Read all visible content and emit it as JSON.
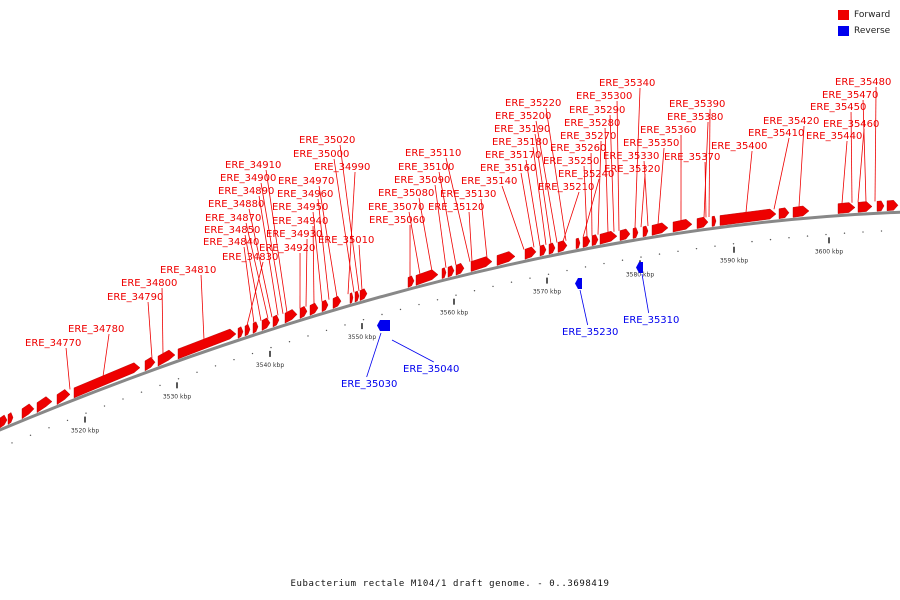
{
  "legend": {
    "items": [
      {
        "label": "Forward",
        "color": "#ee0000"
      },
      {
        "label": "Reverse",
        "color": "#0000ee"
      }
    ]
  },
  "caption": "Eubacterium rectale M104/1 draft genome. - 0..3698419",
  "colors": {
    "forward": "#ee0000",
    "reverse": "#0000ee",
    "backbone": "#888888"
  },
  "scale_ticks": [
    {
      "kbp": 3520,
      "label": "3520 kbp"
    },
    {
      "kbp": 3530,
      "label": "3530 kbp"
    },
    {
      "kbp": 3540,
      "label": "3540 kbp"
    },
    {
      "kbp": 3550,
      "label": "3550 kbp"
    },
    {
      "kbp": 3560,
      "label": "3560 kbp"
    },
    {
      "kbp": 3570,
      "label": "3570 kbp"
    },
    {
      "kbp": 3580,
      "label": "3580 kbp"
    },
    {
      "kbp": 3590,
      "label": "3590 kbp"
    },
    {
      "kbp": 3600,
      "label": "3600 kbp"
    }
  ],
  "forward_genes": [
    "ERE_34770",
    "ERE_34780",
    "ERE_34790",
    "ERE_34800",
    "ERE_34810",
    "ERE_34830",
    "ERE_34840",
    "ERE_34850",
    "ERE_34870",
    "ERE_34880",
    "ERE_34890",
    "ERE_34900",
    "ERE_34910",
    "ERE_34920",
    "ERE_34930",
    "ERE_34940",
    "ERE_34950",
    "ERE_34960",
    "ERE_34970",
    "ERE_34990",
    "ERE_35000",
    "ERE_35010",
    "ERE_35020",
    "ERE_35060",
    "ERE_35070",
    "ERE_35080",
    "ERE_35090",
    "ERE_35100",
    "ERE_35110",
    "ERE_35120",
    "ERE_35130",
    "ERE_35140",
    "ERE_35160",
    "ERE_35170",
    "ERE_35180",
    "ERE_35190",
    "ERE_35200",
    "ERE_35210",
    "ERE_35220",
    "ERE_35240",
    "ERE_35250",
    "ERE_35260",
    "ERE_35270",
    "ERE_35280",
    "ERE_35290",
    "ERE_35300",
    "ERE_35320",
    "ERE_35330",
    "ERE_35340",
    "ERE_35350",
    "ERE_35360",
    "ERE_35370",
    "ERE_35380",
    "ERE_35390",
    "ERE_35400",
    "ERE_35410",
    "ERE_35420",
    "ERE_35440",
    "ERE_35450",
    "ERE_35460",
    "ERE_35470",
    "ERE_35480"
  ],
  "reverse_genes": [
    "ERE_35030",
    "ERE_35040",
    "ERE_35230",
    "ERE_35310"
  ]
}
